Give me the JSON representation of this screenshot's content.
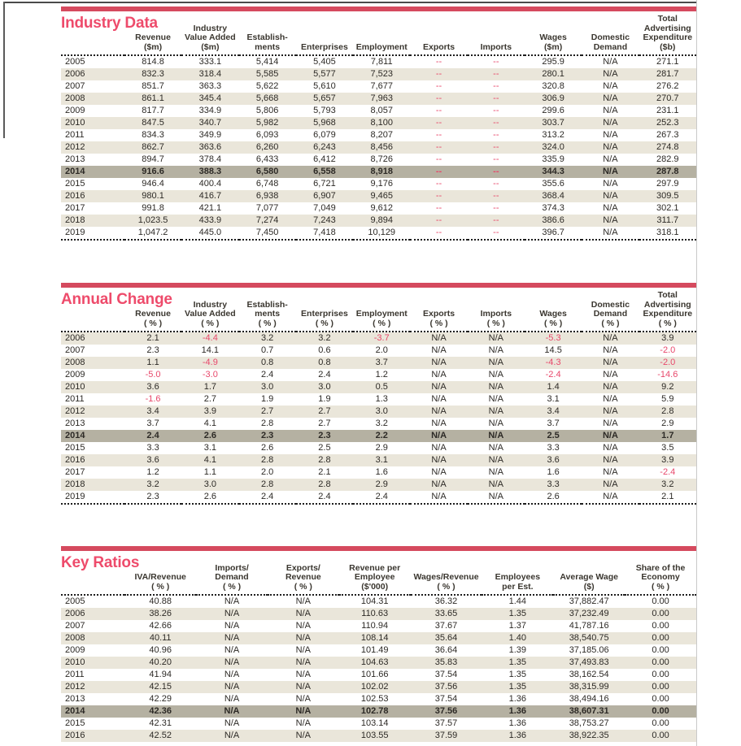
{
  "page": {
    "background": "#ffffff",
    "accent_bar_color": "#d54a5e",
    "title_color": "#ee4b6b",
    "shade_row_color": "#eae6da",
    "highlight_row_color": "#b5b1a2",
    "negative_color": "#e8486b",
    "text_color": "#2d2a26"
  },
  "sections": [
    {
      "title": "Industry Data",
      "columns": [
        {
          "label": "",
          "unit": ""
        },
        {
          "label": "Revenue",
          "unit": "($m)"
        },
        {
          "label": "Industry\nValue Added",
          "unit": "($m)"
        },
        {
          "label": "Establish-\nments",
          "unit": ""
        },
        {
          "label": "Enterprises",
          "unit": ""
        },
        {
          "label": "Employment",
          "unit": ""
        },
        {
          "label": "Exports",
          "unit": ""
        },
        {
          "label": "Imports",
          "unit": ""
        },
        {
          "label": "Wages",
          "unit": "($m)"
        },
        {
          "label": "Domestic\nDemand",
          "unit": ""
        },
        {
          "label": "Total\nAdvertising\nExpenditure",
          "unit": "($b)"
        }
      ],
      "rows": [
        {
          "year": "2005",
          "highlight": false,
          "cells": [
            "814.8",
            "333.1",
            "5,414",
            "5,405",
            "7,811",
            "--",
            "--",
            "295.9",
            "N/A",
            "271.1"
          ]
        },
        {
          "year": "2006",
          "highlight": false,
          "cells": [
            "832.3",
            "318.4",
            "5,585",
            "5,577",
            "7,523",
            "--",
            "--",
            "280.1",
            "N/A",
            "281.7"
          ]
        },
        {
          "year": "2007",
          "highlight": false,
          "cells": [
            "851.7",
            "363.3",
            "5,622",
            "5,610",
            "7,677",
            "--",
            "--",
            "320.8",
            "N/A",
            "276.2"
          ]
        },
        {
          "year": "2008",
          "highlight": false,
          "cells": [
            "861.1",
            "345.4",
            "5,668",
            "5,657",
            "7,963",
            "--",
            "--",
            "306.9",
            "N/A",
            "270.7"
          ]
        },
        {
          "year": "2009",
          "highlight": false,
          "cells": [
            "817.7",
            "334.9",
            "5,806",
            "5,793",
            "8,057",
            "--",
            "--",
            "299.6",
            "N/A",
            "231.1"
          ]
        },
        {
          "year": "2010",
          "highlight": false,
          "cells": [
            "847.5",
            "340.7",
            "5,982",
            "5,968",
            "8,100",
            "--",
            "--",
            "303.7",
            "N/A",
            "252.3"
          ]
        },
        {
          "year": "2011",
          "highlight": false,
          "cells": [
            "834.3",
            "349.9",
            "6,093",
            "6,079",
            "8,207",
            "--",
            "--",
            "313.2",
            "N/A",
            "267.3"
          ]
        },
        {
          "year": "2012",
          "highlight": false,
          "cells": [
            "862.7",
            "363.6",
            "6,260",
            "6,243",
            "8,456",
            "--",
            "--",
            "324.0",
            "N/A",
            "274.8"
          ]
        },
        {
          "year": "2013",
          "highlight": false,
          "cells": [
            "894.7",
            "378.4",
            "6,433",
            "6,412",
            "8,726",
            "--",
            "--",
            "335.9",
            "N/A",
            "282.9"
          ]
        },
        {
          "year": "2014",
          "highlight": true,
          "cells": [
            "916.6",
            "388.3",
            "6,580",
            "6,558",
            "8,918",
            "--",
            "--",
            "344.3",
            "N/A",
            "287.8"
          ]
        },
        {
          "year": "2015",
          "highlight": false,
          "cells": [
            "946.4",
            "400.4",
            "6,748",
            "6,721",
            "9,176",
            "--",
            "--",
            "355.6",
            "N/A",
            "297.9"
          ]
        },
        {
          "year": "2016",
          "highlight": false,
          "cells": [
            "980.1",
            "416.7",
            "6,938",
            "6,907",
            "9,465",
            "--",
            "--",
            "368.4",
            "N/A",
            "309.5"
          ]
        },
        {
          "year": "2017",
          "highlight": false,
          "cells": [
            "991.8",
            "421.1",
            "7,077",
            "7,049",
            "9,612",
            "--",
            "--",
            "374.3",
            "N/A",
            "302.1"
          ]
        },
        {
          "year": "2018",
          "highlight": false,
          "cells": [
            "1,023.5",
            "433.9",
            "7,274",
            "7,243",
            "9,894",
            "--",
            "--",
            "386.6",
            "N/A",
            "311.7"
          ]
        },
        {
          "year": "2019",
          "highlight": false,
          "cells": [
            "1,047.2",
            "445.0",
            "7,450",
            "7,418",
            "10,129",
            "--",
            "--",
            "396.7",
            "N/A",
            "318.1"
          ]
        }
      ]
    },
    {
      "title": "Annual Change",
      "columns": [
        {
          "label": "",
          "unit": ""
        },
        {
          "label": "Revenue",
          "unit": "( % )"
        },
        {
          "label": "Industry\nValue Added",
          "unit": "( % )"
        },
        {
          "label": "Establish-\nments",
          "unit": "( % )"
        },
        {
          "label": "Enterprises",
          "unit": "( % )"
        },
        {
          "label": "Employment",
          "unit": "( % )"
        },
        {
          "label": "Exports",
          "unit": "( % )"
        },
        {
          "label": "Imports",
          "unit": "( % )"
        },
        {
          "label": "Wages",
          "unit": "( % )"
        },
        {
          "label": "Domestic\nDemand",
          "unit": "( % )"
        },
        {
          "label": "Total\nAdvertising\nExpenditure",
          "unit": "( % )"
        }
      ],
      "rows": [
        {
          "year": "2006",
          "highlight": false,
          "cells": [
            "2.1",
            "-4.4",
            "3.2",
            "3.2",
            "-3.7",
            "N/A",
            "N/A",
            "-5.3",
            "N/A",
            "3.9"
          ]
        },
        {
          "year": "2007",
          "highlight": false,
          "cells": [
            "2.3",
            "14.1",
            "0.7",
            "0.6",
            "2.0",
            "N/A",
            "N/A",
            "14.5",
            "N/A",
            "-2.0"
          ]
        },
        {
          "year": "2008",
          "highlight": false,
          "cells": [
            "1.1",
            "-4.9",
            "0.8",
            "0.8",
            "3.7",
            "N/A",
            "N/A",
            "-4.3",
            "N/A",
            "-2.0"
          ]
        },
        {
          "year": "2009",
          "highlight": false,
          "cells": [
            "-5.0",
            "-3.0",
            "2.4",
            "2.4",
            "1.2",
            "N/A",
            "N/A",
            "-2.4",
            "N/A",
            "-14.6"
          ]
        },
        {
          "year": "2010",
          "highlight": false,
          "cells": [
            "3.6",
            "1.7",
            "3.0",
            "3.0",
            "0.5",
            "N/A",
            "N/A",
            "1.4",
            "N/A",
            "9.2"
          ]
        },
        {
          "year": "2011",
          "highlight": false,
          "cells": [
            "-1.6",
            "2.7",
            "1.9",
            "1.9",
            "1.3",
            "N/A",
            "N/A",
            "3.1",
            "N/A",
            "5.9"
          ]
        },
        {
          "year": "2012",
          "highlight": false,
          "cells": [
            "3.4",
            "3.9",
            "2.7",
            "2.7",
            "3.0",
            "N/A",
            "N/A",
            "3.4",
            "N/A",
            "2.8"
          ]
        },
        {
          "year": "2013",
          "highlight": false,
          "cells": [
            "3.7",
            "4.1",
            "2.8",
            "2.7",
            "3.2",
            "N/A",
            "N/A",
            "3.7",
            "N/A",
            "2.9"
          ]
        },
        {
          "year": "2014",
          "highlight": true,
          "cells": [
            "2.4",
            "2.6",
            "2.3",
            "2.3",
            "2.2",
            "N/A",
            "N/A",
            "2.5",
            "N/A",
            "1.7"
          ]
        },
        {
          "year": "2015",
          "highlight": false,
          "cells": [
            "3.3",
            "3.1",
            "2.6",
            "2.5",
            "2.9",
            "N/A",
            "N/A",
            "3.3",
            "N/A",
            "3.5"
          ]
        },
        {
          "year": "2016",
          "highlight": false,
          "cells": [
            "3.6",
            "4.1",
            "2.8",
            "2.8",
            "3.1",
            "N/A",
            "N/A",
            "3.6",
            "N/A",
            "3.9"
          ]
        },
        {
          "year": "2017",
          "highlight": false,
          "cells": [
            "1.2",
            "1.1",
            "2.0",
            "2.1",
            "1.6",
            "N/A",
            "N/A",
            "1.6",
            "N/A",
            "-2.4"
          ]
        },
        {
          "year": "2018",
          "highlight": false,
          "cells": [
            "3.2",
            "3.0",
            "2.8",
            "2.8",
            "2.9",
            "N/A",
            "N/A",
            "3.3",
            "N/A",
            "3.2"
          ]
        },
        {
          "year": "2019",
          "highlight": false,
          "cells": [
            "2.3",
            "2.6",
            "2.4",
            "2.4",
            "2.4",
            "N/A",
            "N/A",
            "2.6",
            "N/A",
            "2.1"
          ]
        }
      ]
    },
    {
      "title": "Key Ratios",
      "columns": [
        {
          "label": "",
          "unit": ""
        },
        {
          "label": "IVA/Revenue",
          "unit": "( % )"
        },
        {
          "label": "Imports/\nDemand",
          "unit": "( % )"
        },
        {
          "label": "Exports/\nRevenue",
          "unit": "( % )"
        },
        {
          "label": "Revenue per\nEmployee",
          "unit": "($'000)"
        },
        {
          "label": "Wages/Revenue",
          "unit": "( % )"
        },
        {
          "label": "Employees\nper Est.",
          "unit": ""
        },
        {
          "label": "Average Wage",
          "unit": "($)"
        },
        {
          "label": "Share of the\nEconomy",
          "unit": "( % )"
        }
      ],
      "rows": [
        {
          "year": "2005",
          "highlight": false,
          "cells": [
            "40.88",
            "N/A",
            "N/A",
            "104.31",
            "36.32",
            "1.44",
            "37,882.47",
            "0.00"
          ]
        },
        {
          "year": "2006",
          "highlight": false,
          "cells": [
            "38.26",
            "N/A",
            "N/A",
            "110.63",
            "33.65",
            "1.35",
            "37,232.49",
            "0.00"
          ]
        },
        {
          "year": "2007",
          "highlight": false,
          "cells": [
            "42.66",
            "N/A",
            "N/A",
            "110.94",
            "37.67",
            "1.37",
            "41,787.16",
            "0.00"
          ]
        },
        {
          "year": "2008",
          "highlight": false,
          "cells": [
            "40.11",
            "N/A",
            "N/A",
            "108.14",
            "35.64",
            "1.40",
            "38,540.75",
            "0.00"
          ]
        },
        {
          "year": "2009",
          "highlight": false,
          "cells": [
            "40.96",
            "N/A",
            "N/A",
            "101.49",
            "36.64",
            "1.39",
            "37,185.06",
            "0.00"
          ]
        },
        {
          "year": "2010",
          "highlight": false,
          "cells": [
            "40.20",
            "N/A",
            "N/A",
            "104.63",
            "35.83",
            "1.35",
            "37,493.83",
            "0.00"
          ]
        },
        {
          "year": "2011",
          "highlight": false,
          "cells": [
            "41.94",
            "N/A",
            "N/A",
            "101.66",
            "37.54",
            "1.35",
            "38,162.54",
            "0.00"
          ]
        },
        {
          "year": "2012",
          "highlight": false,
          "cells": [
            "42.15",
            "N/A",
            "N/A",
            "102.02",
            "37.56",
            "1.35",
            "38,315.99",
            "0.00"
          ]
        },
        {
          "year": "2013",
          "highlight": false,
          "cells": [
            "42.29",
            "N/A",
            "N/A",
            "102.53",
            "37.54",
            "1.36",
            "38,494.16",
            "0.00"
          ]
        },
        {
          "year": "2014",
          "highlight": true,
          "cells": [
            "42.36",
            "N/A",
            "N/A",
            "102.78",
            "37.56",
            "1.36",
            "38,607.31",
            "0.00"
          ]
        },
        {
          "year": "2015",
          "highlight": false,
          "cells": [
            "42.31",
            "N/A",
            "N/A",
            "103.14",
            "37.57",
            "1.36",
            "38,753.27",
            "0.00"
          ]
        },
        {
          "year": "2016",
          "highlight": false,
          "cells": [
            "42.52",
            "N/A",
            "N/A",
            "103.55",
            "37.59",
            "1.36",
            "38,922.35",
            "0.00"
          ]
        }
      ]
    }
  ]
}
